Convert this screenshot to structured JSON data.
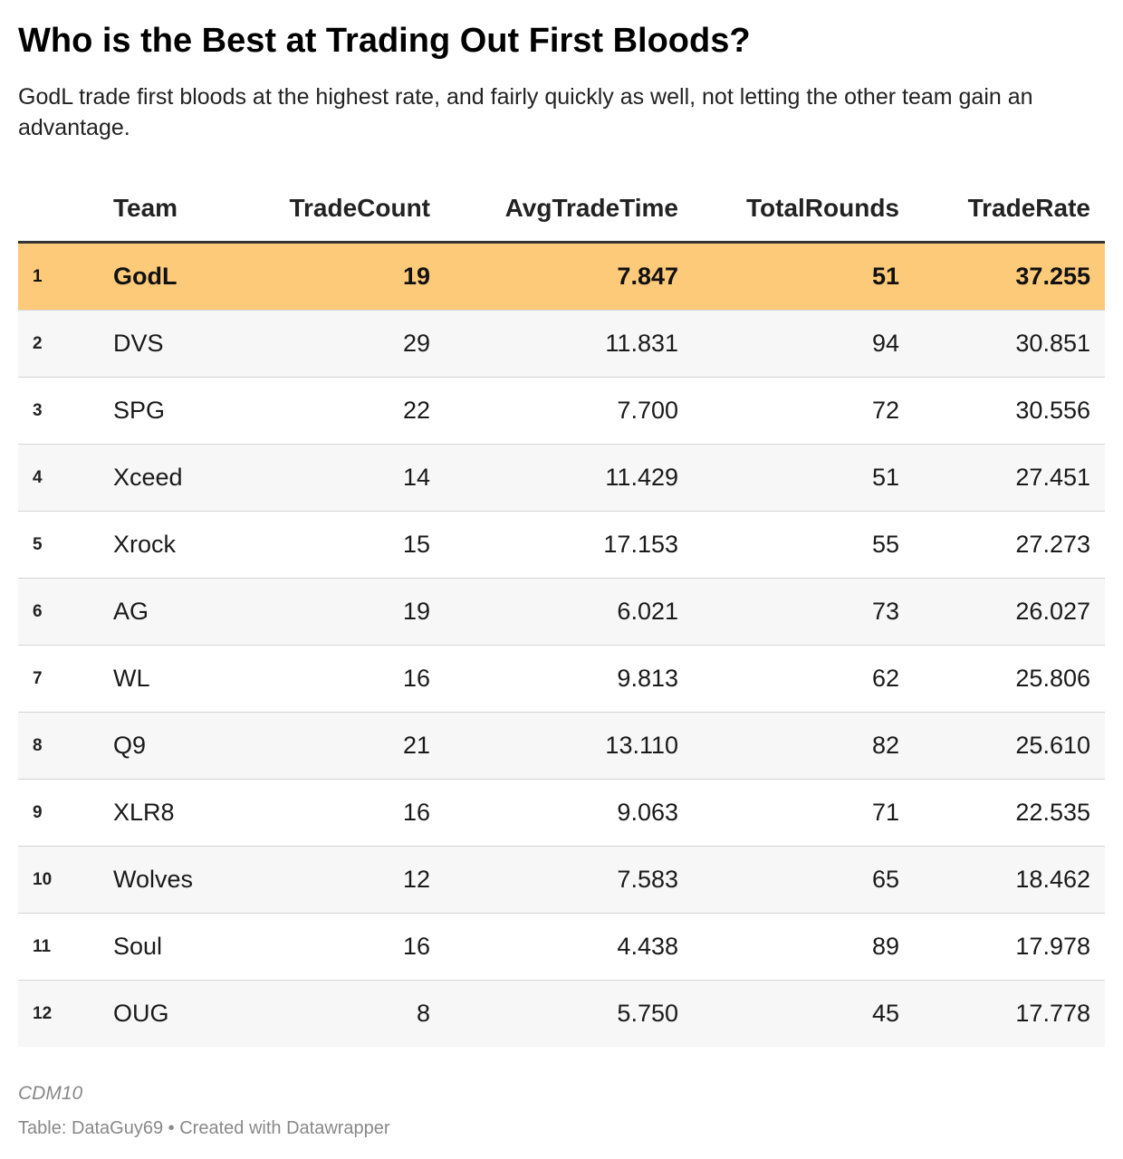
{
  "title": "Who is the Best at Trading Out First Bloods?",
  "subtitle": "GodL trade first bloods at the highest rate, and fairly quickly as well, not letting the other team gain an advantage.",
  "note": "CDM10",
  "footer": {
    "source_label": "Table: ",
    "source": "DataGuy69",
    "separator": " • ",
    "credit": "Created with Datawrapper"
  },
  "colors": {
    "highlight": "#fdca7a",
    "stripe": "#f7f7f7",
    "header_rule": "#333333",
    "row_rule": "#d4d4d4"
  },
  "chart_data": {
    "type": "table",
    "columns": [
      "",
      "Team",
      "TradeCount",
      "AvgTradeTime",
      "TotalRounds",
      "TradeRate"
    ],
    "highlighted_row": 1,
    "rows": [
      {
        "rank": "1",
        "team": "GodL",
        "trade_count": "19",
        "avg_trade_time": "7.847",
        "total_rounds": "51",
        "trade_rate": "37.255"
      },
      {
        "rank": "2",
        "team": "DVS",
        "trade_count": "29",
        "avg_trade_time": "11.831",
        "total_rounds": "94",
        "trade_rate": "30.851"
      },
      {
        "rank": "3",
        "team": "SPG",
        "trade_count": "22",
        "avg_trade_time": "7.700",
        "total_rounds": "72",
        "trade_rate": "30.556"
      },
      {
        "rank": "4",
        "team": "Xceed",
        "trade_count": "14",
        "avg_trade_time": "11.429",
        "total_rounds": "51",
        "trade_rate": "27.451"
      },
      {
        "rank": "5",
        "team": "Xrock",
        "trade_count": "15",
        "avg_trade_time": "17.153",
        "total_rounds": "55",
        "trade_rate": "27.273"
      },
      {
        "rank": "6",
        "team": "AG",
        "trade_count": "19",
        "avg_trade_time": "6.021",
        "total_rounds": "73",
        "trade_rate": "26.027"
      },
      {
        "rank": "7",
        "team": "WL",
        "trade_count": "16",
        "avg_trade_time": "9.813",
        "total_rounds": "62",
        "trade_rate": "25.806"
      },
      {
        "rank": "8",
        "team": "Q9",
        "trade_count": "21",
        "avg_trade_time": "13.110",
        "total_rounds": "82",
        "trade_rate": "25.610"
      },
      {
        "rank": "9",
        "team": "XLR8",
        "trade_count": "16",
        "avg_trade_time": "9.063",
        "total_rounds": "71",
        "trade_rate": "22.535"
      },
      {
        "rank": "10",
        "team": "Wolves",
        "trade_count": "12",
        "avg_trade_time": "7.583",
        "total_rounds": "65",
        "trade_rate": "18.462"
      },
      {
        "rank": "11",
        "team": "Soul",
        "trade_count": "16",
        "avg_trade_time": "4.438",
        "total_rounds": "89",
        "trade_rate": "17.978"
      },
      {
        "rank": "12",
        "team": "OUG",
        "trade_count": "8",
        "avg_trade_time": "5.750",
        "total_rounds": "45",
        "trade_rate": "17.778"
      }
    ]
  }
}
